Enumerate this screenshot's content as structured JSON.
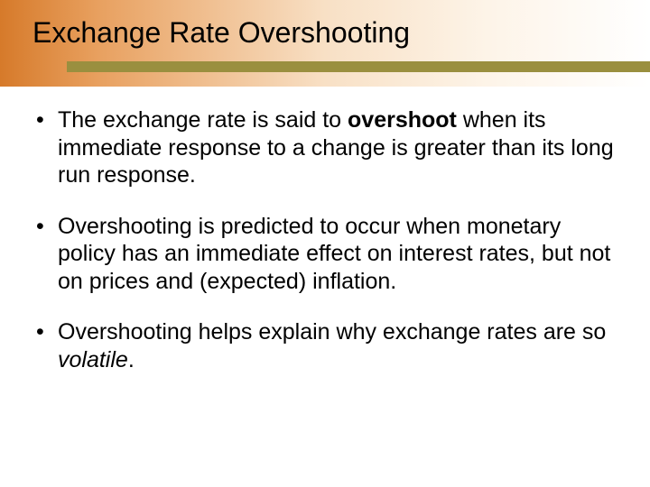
{
  "slide": {
    "title": "Exchange Rate Overshooting",
    "header_gradient_start": "#d67a2a",
    "header_gradient_end": "#ffffff",
    "accent_bar_color": "#9a8f3f",
    "background_color": "#ffffff",
    "title_fontsize": 32,
    "body_fontsize": 25,
    "bullets": [
      {
        "pre": "The exchange rate is said to ",
        "bold": "overshoot",
        "post": " when its immediate response to a change is greater than its long run response."
      },
      {
        "pre": "Overshooting is predicted to occur when monetary policy has an immediate effect on interest rates, but not on prices and (expected) inflation.",
        "bold": "",
        "post": ""
      },
      {
        "pre": "Overshooting helps explain why exchange rates are so ",
        "italic": "volatile",
        "post": "."
      }
    ]
  }
}
